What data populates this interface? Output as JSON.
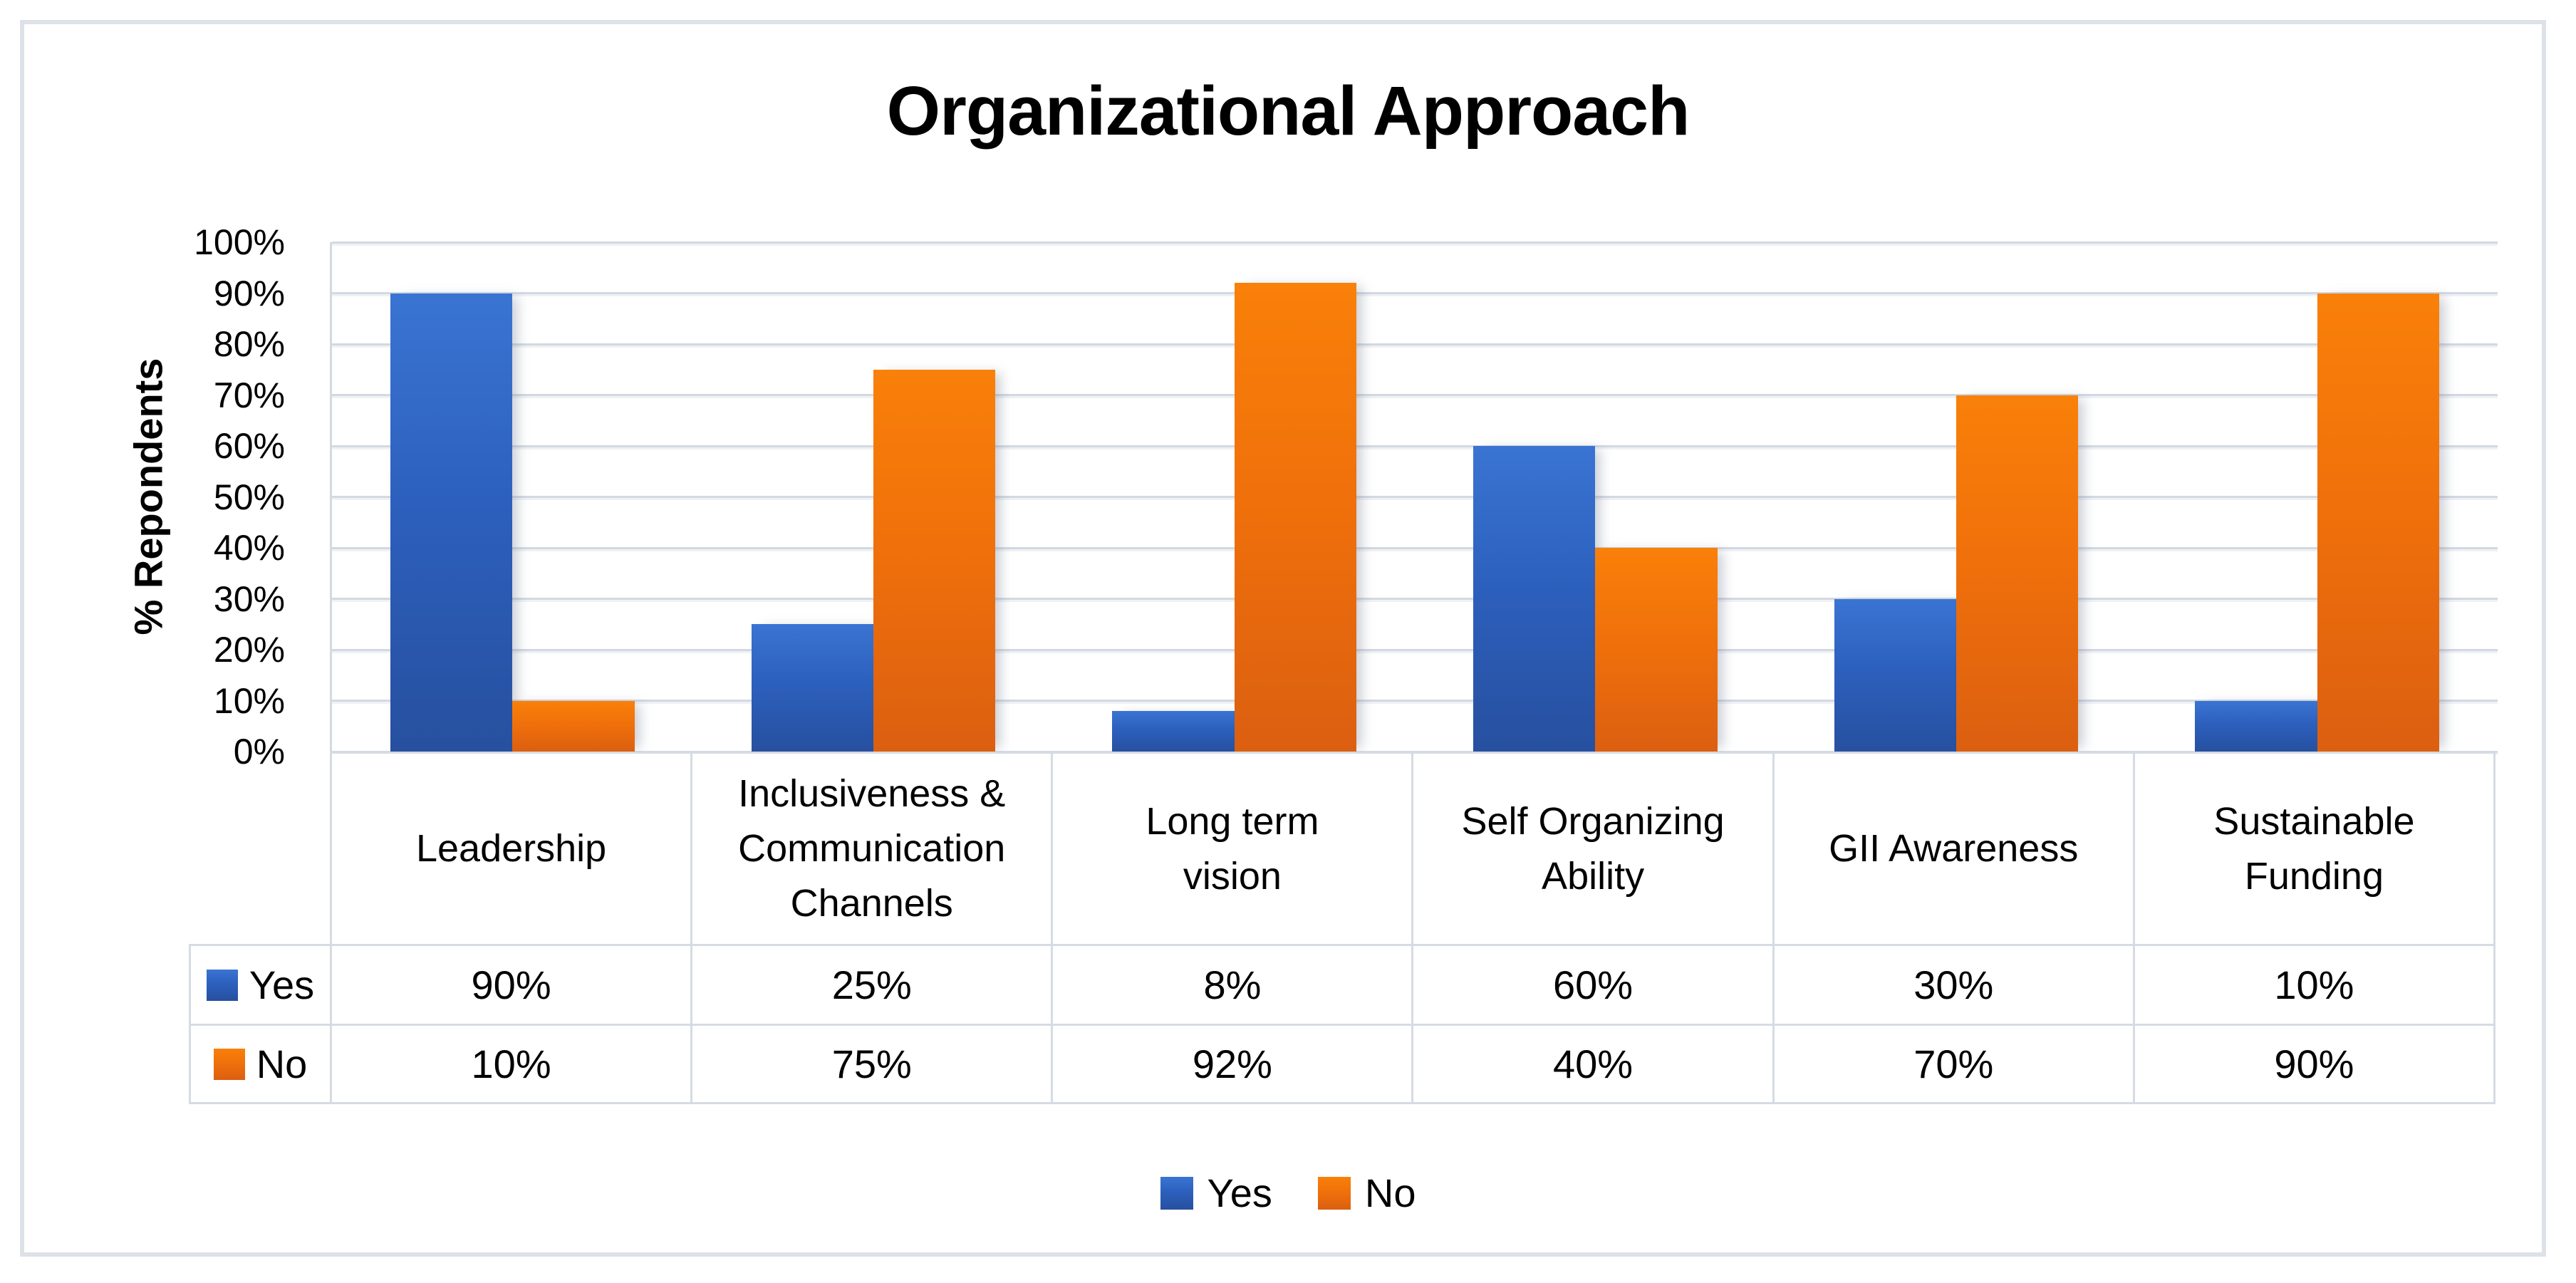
{
  "figure": {
    "title": "Organizational Approach",
    "y_axis_title": "% Repondents"
  },
  "chart_data": {
    "type": "bar",
    "title": "Organizational Approach",
    "xlabel": "",
    "ylabel": "% Repondents",
    "ylim": [
      0,
      100
    ],
    "grid": true,
    "legend_position": "bottom",
    "y_tick_labels": [
      "0%",
      "10%",
      "20%",
      "30%",
      "40%",
      "50%",
      "60%",
      "70%",
      "80%",
      "90%",
      "100%"
    ],
    "categories": [
      "Leadership",
      "Inclusiveness &\nCommunication\nChannels",
      "Long term\nvision",
      "Self Organizing\nAbility",
      "GII Awareness",
      "Sustainable\nFunding"
    ],
    "series": [
      {
        "name": "Yes",
        "color": "#2e66c3",
        "values": [
          90,
          25,
          8,
          60,
          30,
          10
        ],
        "display_values": [
          "90%",
          "25%",
          "8%",
          "60%",
          "30%",
          "10%"
        ]
      },
      {
        "name": "No",
        "color": "#ee700c",
        "values": [
          10,
          75,
          92,
          40,
          70,
          90
        ],
        "display_values": [
          "10%",
          "75%",
          "92%",
          "40%",
          "70%",
          "90%"
        ]
      }
    ]
  }
}
